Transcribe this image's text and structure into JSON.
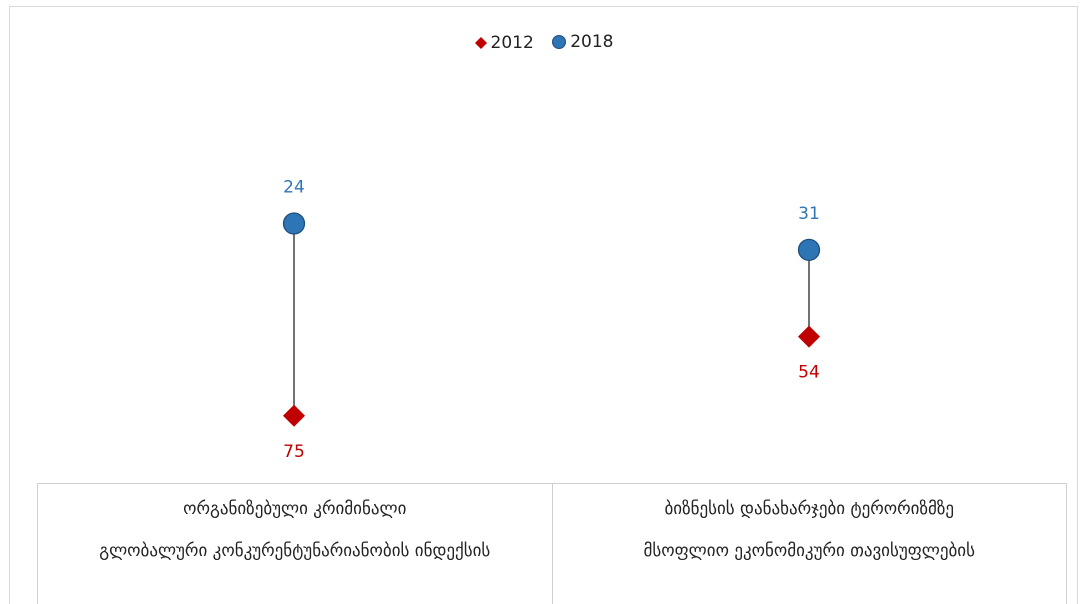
{
  "chart_data": {
    "type": "dumbbell",
    "legend": [
      {
        "name": "2012",
        "color": "#c00000",
        "marker": "diamond"
      },
      {
        "name": "2018",
        "color": "#2e75b6",
        "marker": "circle"
      }
    ],
    "legend_position": "top-center",
    "categories": [
      {
        "label": "ორგანიზებული კრიმინალი",
        "sublabel": "გლობალური კონკურენტუნარიანობის ინდექსის"
      },
      {
        "label": "ბიზნესის დანახარჯები ტერორიზმზე",
        "sublabel": "მსოფლიო ეკონომიკური თავისუფლების"
      }
    ],
    "series": [
      {
        "name": "2012",
        "values": [
          75,
          54
        ]
      },
      {
        "name": "2018",
        "values": [
          24,
          31
        ]
      }
    ],
    "y_reversed": true,
    "grid": false
  },
  "colors": {
    "series_2012": "#c00000",
    "series_2018": "#2e75b6",
    "connector": "#444444"
  }
}
